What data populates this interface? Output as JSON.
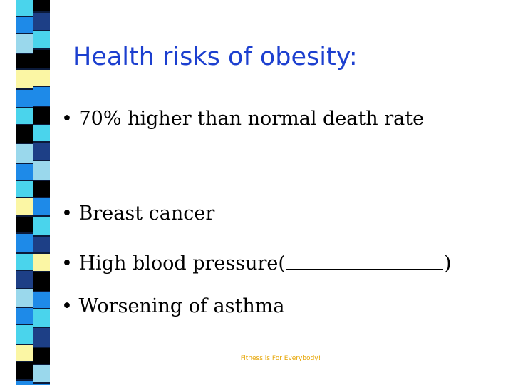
{
  "slide": {
    "title": "Health risks of obesity:",
    "bullets": [
      "• 70% higher than normal death rate",
      "• Breast cancer",
      "• High blood pressure(",
      "• Worsening of asthma"
    ],
    "blank_close": ")",
    "footer": "Fitness is For Everybody!"
  },
  "decor": {
    "strip_icon": "striped-tile-border",
    "colors": [
      "#000000",
      "#1e8ae8",
      "#4ad4ec",
      "#1d3f86",
      "#fbf6a4",
      "#9ad8ec"
    ]
  }
}
